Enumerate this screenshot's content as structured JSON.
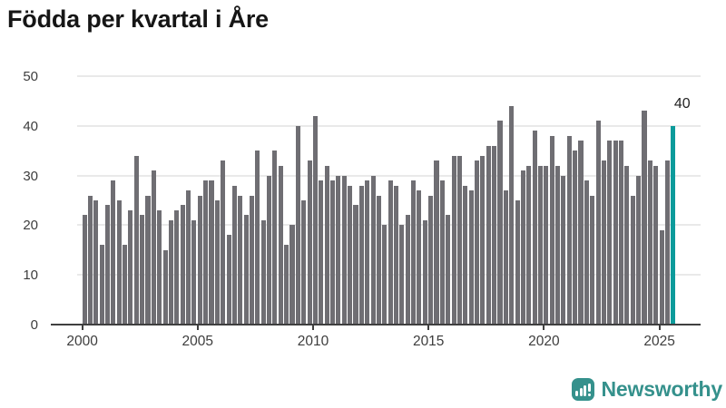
{
  "title": "Födda per kvartal i Åre",
  "chart_data": {
    "type": "bar",
    "title": "Födda per kvartal i Åre",
    "x_unit": "quarter",
    "start_year": 2000,
    "start_quarter": 1,
    "values": [
      22,
      26,
      25,
      16,
      24,
      29,
      25,
      16,
      23,
      34,
      22,
      26,
      31,
      23,
      15,
      21,
      23,
      24,
      27,
      21,
      26,
      29,
      29,
      25,
      33,
      18,
      28,
      26,
      22,
      26,
      35,
      21,
      30,
      35,
      32,
      16,
      20,
      40,
      25,
      33,
      42,
      29,
      32,
      29,
      30,
      30,
      28,
      24,
      28,
      29,
      30,
      26,
      20,
      29,
      28,
      20,
      22,
      29,
      27,
      21,
      26,
      33,
      29,
      22,
      34,
      34,
      28,
      27,
      33,
      34,
      36,
      36,
      41,
      27,
      44,
      25,
      31,
      32,
      39,
      32,
      32,
      38,
      32,
      30,
      38,
      35,
      37,
      29,
      26,
      41,
      33,
      37,
      37,
      37,
      32,
      26,
      30,
      43,
      33,
      32,
      19,
      33,
      40
    ],
    "highlight_last_bar": true,
    "annotation_label": "40",
    "ylim": [
      0,
      50
    ],
    "ytick_labels": [
      "0",
      "10",
      "20",
      "30",
      "40",
      "50"
    ],
    "yticks": [
      0,
      10,
      20,
      30,
      40,
      50
    ],
    "xtick_labels": [
      "2000",
      "2005",
      "2010",
      "2015",
      "2020",
      "2025"
    ],
    "xtick_years": [
      2000,
      2005,
      2010,
      2015,
      2020,
      2025
    ],
    "grid": true,
    "legend": "none",
    "bar_color": "#6f6e73",
    "highlight_color": "#0c9b9b"
  },
  "footer": {
    "brand": "Newsworthy"
  },
  "colors": {
    "title_text": "#161616",
    "axis_text": "#3d3d3d",
    "axis_line": "#3f3f3f",
    "gridline": "#e9e9e9",
    "bar_gray": "#6f6e73",
    "accent_teal": "#0c9b9b",
    "brand_teal": "#35918c"
  }
}
